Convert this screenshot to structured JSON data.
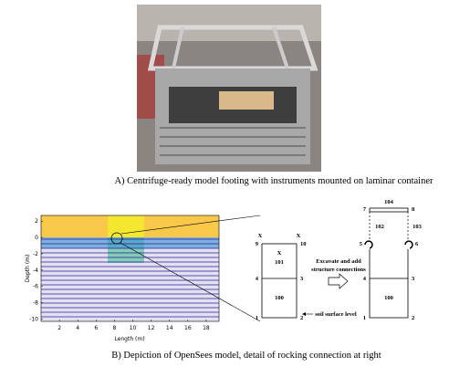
{
  "figure_a": {
    "caption": "A)  Centrifuge-ready model footing with instruments mounted on laminar container"
  },
  "figure_b": {
    "caption": "B)  Depiction of OpenSees model, detail of rocking connection at right",
    "mesh_plot": {
      "y_label": "Depth (m)",
      "x_label": "Length (m)",
      "xlim": [
        0,
        19.4
      ],
      "ylim": [
        -10.3,
        2.7
      ],
      "xticks": [
        2,
        4,
        6,
        8,
        10,
        12,
        14,
        16,
        18
      ],
      "yticks": [
        2,
        0,
        -2,
        -4,
        -6,
        -8,
        -10
      ]
    },
    "model_before": {
      "fixed_marks": [
        "X",
        "X"
      ],
      "element_mark": "X",
      "nodes": [
        "9",
        "10",
        "4",
        "3",
        "1",
        "2"
      ],
      "elements": [
        "101",
        "100"
      ]
    },
    "annotation": [
      "Excavate and add",
      "structure connections"
    ],
    "soil_label": "soil surface level",
    "model_after": {
      "nodes": [
        "7",
        "8",
        "5",
        "6",
        "4",
        "3",
        "1",
        "2"
      ],
      "elements": [
        "104",
        "102",
        "103",
        "100"
      ]
    }
  }
}
